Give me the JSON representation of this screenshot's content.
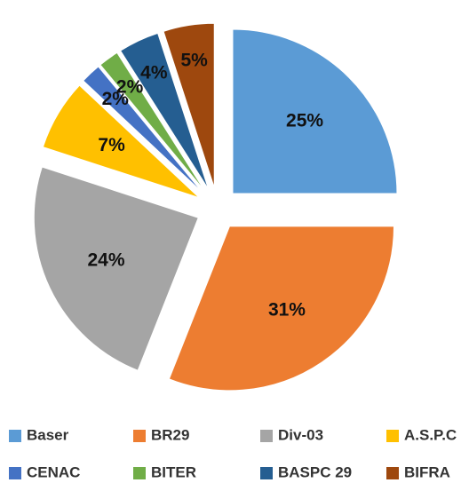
{
  "chart_data": {
    "type": "pie",
    "categories": [
      "Baser",
      "BR29",
      "Div-03",
      "A.S.P.C",
      "CENAC",
      "BITER",
      "BASPC 29",
      "BIFRA"
    ],
    "values": [
      25,
      31,
      24,
      7,
      2,
      2,
      4,
      5
    ],
    "value_labels": [
      "25%",
      "31%",
      "24%",
      "7%",
      "2%",
      "2%",
      "4%",
      "5%"
    ],
    "colors": [
      "#5b9bd5",
      "#ed7d31",
      "#a5a5a5",
      "#ffc000",
      "#4472c4",
      "#70ad47",
      "#255e91",
      "#9e480e"
    ],
    "legend": "bottom"
  }
}
